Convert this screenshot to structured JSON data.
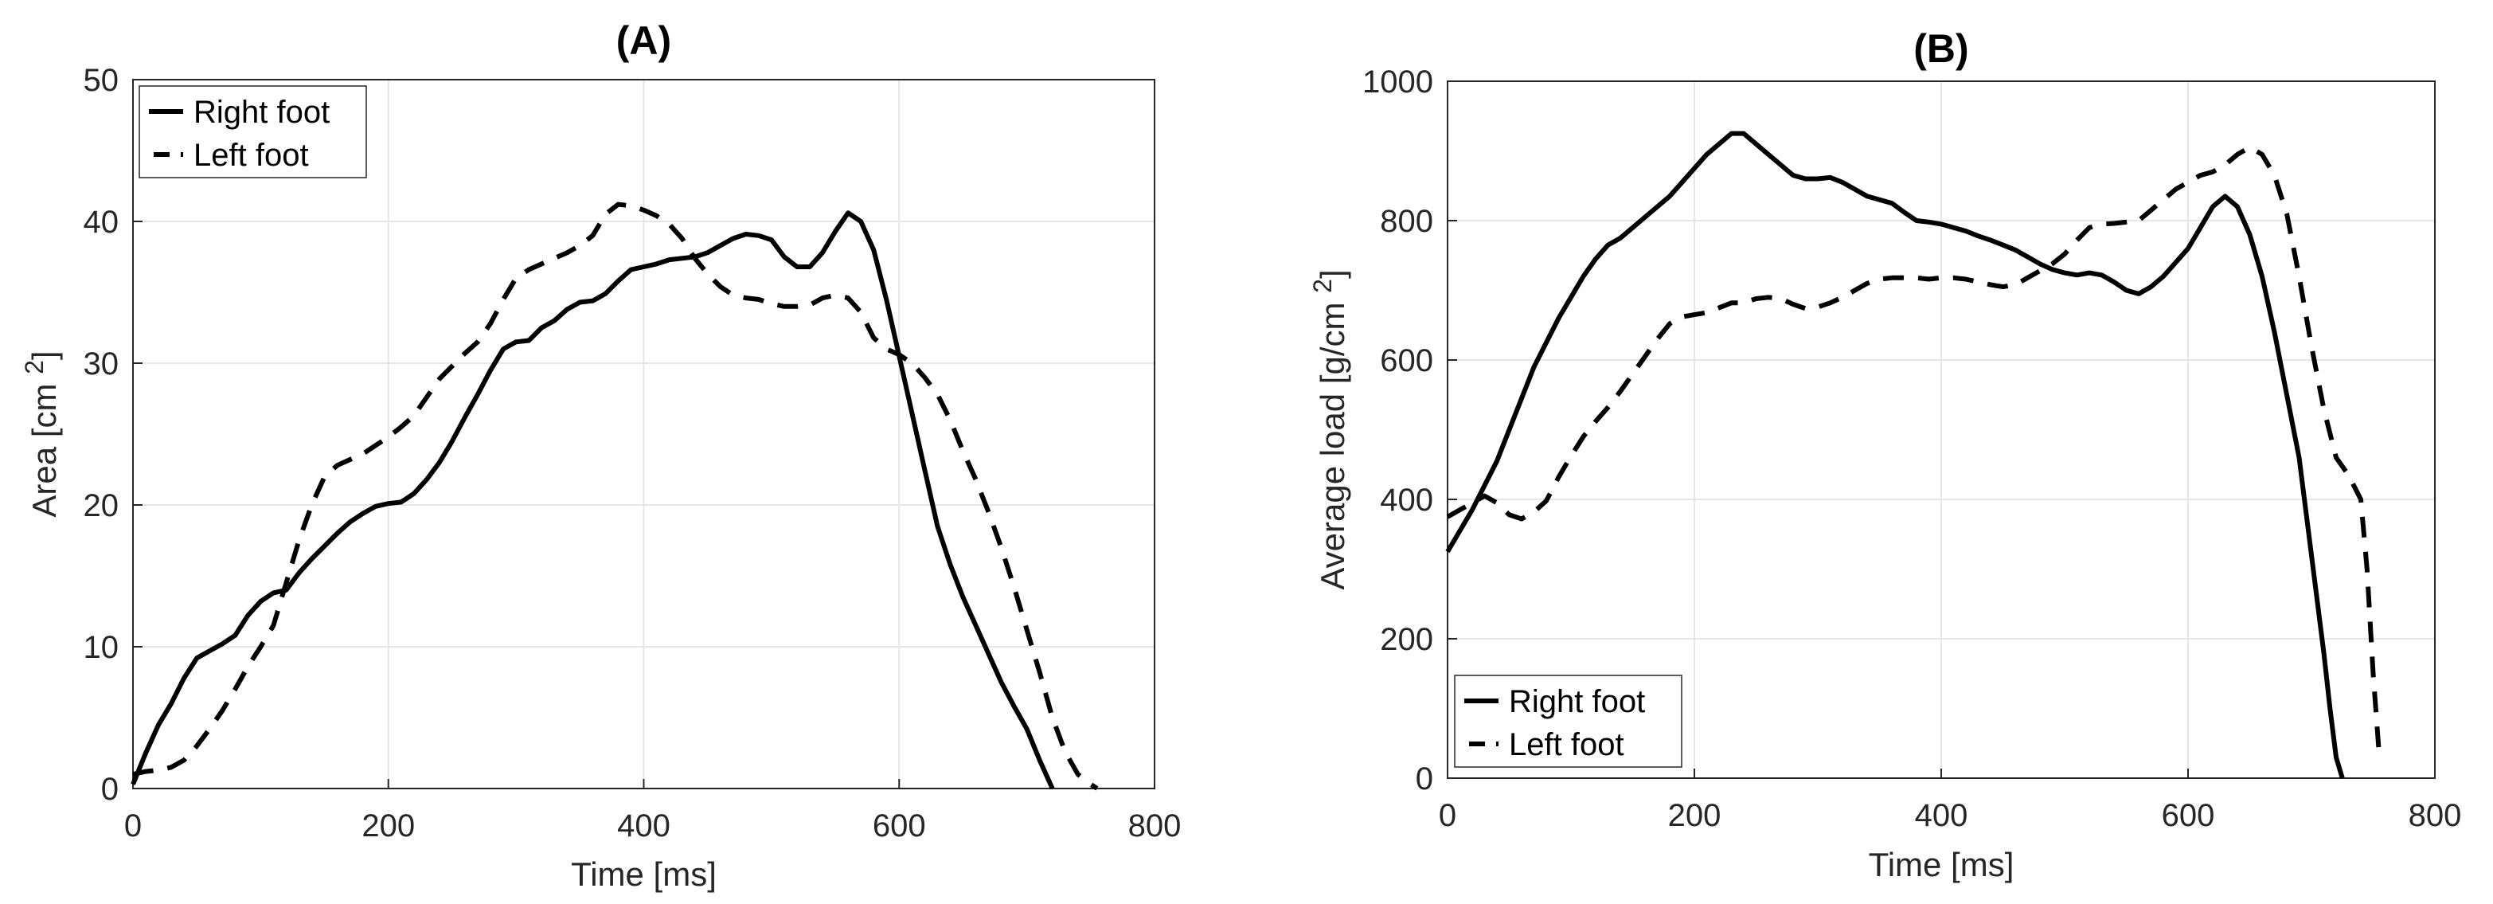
{
  "chart_data": [
    {
      "type": "line",
      "title": "(A)",
      "xlabel": "Time [ms]",
      "ylabel": "Area [cm",
      "ylabel_superscript": "2",
      "ylabel_suffix": "]",
      "xlim": [
        0,
        800
      ],
      "ylim": [
        0,
        50
      ],
      "xticks": [
        0,
        200,
        400,
        600,
        800
      ],
      "yticks": [
        0,
        10,
        20,
        30,
        40,
        50
      ],
      "xtick_labels": [
        "0",
        "200",
        "400",
        "600",
        "800"
      ],
      "ytick_labels": [
        "0",
        "10",
        "20",
        "30",
        "40",
        "50"
      ],
      "grid": true,
      "legend_position": "top-left",
      "series": [
        {
          "name": "Right foot",
          "style": "solid",
          "color": "#000000",
          "x": [
            0,
            10,
            20,
            30,
            40,
            50,
            60,
            70,
            80,
            90,
            100,
            110,
            120,
            130,
            140,
            150,
            160,
            170,
            180,
            190,
            200,
            210,
            220,
            230,
            240,
            250,
            260,
            270,
            280,
            290,
            300,
            310,
            320,
            330,
            340,
            350,
            360,
            370,
            380,
            390,
            400,
            410,
            420,
            430,
            440,
            450,
            460,
            470,
            480,
            490,
            500,
            510,
            520,
            530,
            540,
            550,
            560,
            570,
            580,
            590,
            600,
            610,
            620,
            630,
            640,
            650,
            660,
            670,
            680,
            690,
            700,
            710,
            720
          ],
          "y": [
            0.3,
            2.5,
            4.5,
            6.0,
            7.8,
            9.2,
            9.7,
            10.2,
            10.8,
            12.2,
            13.2,
            13.8,
            14.0,
            15.2,
            16.2,
            17.1,
            18.0,
            18.8,
            19.4,
            19.9,
            20.1,
            20.2,
            20.8,
            21.8,
            23.0,
            24.5,
            26.2,
            27.8,
            29.5,
            31.0,
            31.5,
            31.6,
            32.5,
            33.0,
            33.8,
            34.3,
            34.4,
            34.9,
            35.8,
            36.6,
            36.8,
            37.0,
            37.3,
            37.4,
            37.5,
            37.8,
            38.3,
            38.8,
            39.1,
            39.0,
            38.7,
            37.5,
            36.8,
            36.8,
            37.8,
            39.3,
            40.6,
            40.0,
            38.0,
            34.5,
            30.5,
            26.5,
            22.5,
            18.5,
            15.8,
            13.5,
            11.5,
            9.5,
            7.5,
            5.8,
            4.2,
            2.0,
            0.0
          ]
        },
        {
          "name": "Left foot",
          "style": "dashed",
          "color": "#000000",
          "x": [
            0,
            10,
            20,
            30,
            40,
            50,
            60,
            70,
            80,
            90,
            100,
            110,
            120,
            130,
            140,
            150,
            160,
            170,
            180,
            190,
            200,
            210,
            220,
            230,
            240,
            250,
            260,
            270,
            280,
            290,
            300,
            310,
            320,
            330,
            340,
            350,
            360,
            370,
            380,
            390,
            400,
            410,
            420,
            430,
            440,
            450,
            460,
            470,
            480,
            490,
            500,
            510,
            520,
            530,
            540,
            550,
            560,
            570,
            580,
            590,
            600,
            610,
            620,
            630,
            640,
            650,
            660,
            670,
            680,
            690,
            700,
            710,
            720,
            730,
            740,
            750,
            755
          ],
          "y": [
            1.0,
            1.2,
            1.3,
            1.5,
            2.0,
            3.0,
            4.2,
            5.5,
            7.0,
            8.6,
            10.0,
            11.5,
            14.5,
            17.5,
            20.0,
            22.0,
            22.8,
            23.2,
            23.6,
            24.2,
            24.8,
            25.5,
            26.3,
            27.6,
            28.9,
            29.8,
            30.7,
            31.5,
            32.8,
            34.5,
            36.0,
            36.6,
            37.0,
            37.4,
            37.8,
            38.3,
            39.0,
            40.5,
            41.2,
            41.1,
            40.8,
            40.4,
            39.8,
            38.8,
            37.4,
            36.3,
            35.4,
            34.8,
            34.6,
            34.5,
            34.2,
            34.0,
            34.0,
            34.1,
            34.6,
            34.8,
            34.6,
            33.6,
            31.8,
            31.0,
            30.6,
            30.0,
            29.0,
            27.8,
            26.0,
            23.8,
            21.8,
            19.5,
            17.0,
            14.2,
            11.2,
            8.2,
            5.0,
            2.6,
            1.0,
            0.3,
            0.0
          ]
        }
      ]
    },
    {
      "type": "line",
      "title": "(B)",
      "xlabel": "Time [ms]",
      "ylabel": "Average load [g/cm",
      "ylabel_superscript": "2",
      "ylabel_suffix": "]",
      "xlim": [
        0,
        800
      ],
      "ylim": [
        0,
        1000
      ],
      "xticks": [
        0,
        200,
        400,
        600,
        800
      ],
      "yticks": [
        0,
        200,
        400,
        600,
        800,
        1000
      ],
      "xtick_labels": [
        "0",
        "200",
        "400",
        "600",
        "800"
      ],
      "ytick_labels": [
        "0",
        "200",
        "400",
        "600",
        "800",
        "1000"
      ],
      "grid": true,
      "legend_position": "bottom-left",
      "series": [
        {
          "name": "Right foot",
          "style": "solid",
          "color": "#000000",
          "x": [
            0,
            10,
            20,
            30,
            40,
            50,
            60,
            70,
            80,
            90,
            100,
            110,
            120,
            130,
            140,
            150,
            160,
            170,
            180,
            190,
            200,
            210,
            220,
            230,
            240,
            250,
            260,
            270,
            280,
            290,
            300,
            310,
            320,
            330,
            340,
            350,
            360,
            370,
            380,
            390,
            400,
            410,
            420,
            430,
            440,
            450,
            460,
            470,
            480,
            490,
            500,
            510,
            520,
            530,
            540,
            550,
            560,
            570,
            580,
            590,
            600,
            610,
            620,
            630,
            640,
            650,
            660,
            670,
            680,
            690,
            700,
            710,
            715,
            720,
            725
          ],
          "y": [
            325,
            355,
            385,
            420,
            455,
            500,
            545,
            590,
            625,
            660,
            690,
            720,
            745,
            765,
            775,
            790,
            805,
            820,
            835,
            855,
            875,
            895,
            910,
            925,
            925,
            910,
            895,
            880,
            865,
            860,
            860,
            862,
            855,
            845,
            835,
            830,
            825,
            812,
            800,
            798,
            795,
            790,
            785,
            778,
            772,
            765,
            758,
            748,
            738,
            730,
            725,
            722,
            725,
            722,
            712,
            700,
            695,
            705,
            720,
            740,
            760,
            790,
            820,
            835,
            820,
            780,
            720,
            640,
            550,
            460,
            320,
            180,
            100,
            30,
            0
          ]
        },
        {
          "name": "Left foot",
          "style": "dashed",
          "color": "#000000",
          "x": [
            0,
            10,
            20,
            30,
            40,
            50,
            60,
            70,
            80,
            90,
            100,
            110,
            120,
            130,
            140,
            150,
            160,
            170,
            180,
            190,
            200,
            210,
            220,
            230,
            240,
            250,
            260,
            270,
            280,
            290,
            300,
            310,
            320,
            330,
            340,
            350,
            360,
            370,
            380,
            390,
            400,
            410,
            420,
            430,
            440,
            450,
            460,
            470,
            480,
            490,
            500,
            510,
            520,
            530,
            540,
            550,
            560,
            570,
            580,
            590,
            600,
            610,
            620,
            630,
            640,
            650,
            660,
            670,
            680,
            690,
            700,
            710,
            720,
            730,
            740,
            745,
            750,
            755
          ],
          "y": [
            375,
            385,
            395,
            405,
            395,
            378,
            372,
            382,
            398,
            432,
            462,
            490,
            512,
            532,
            555,
            580,
            605,
            630,
            652,
            662,
            665,
            668,
            675,
            682,
            682,
            688,
            690,
            688,
            680,
            674,
            676,
            682,
            690,
            700,
            710,
            716,
            718,
            718,
            718,
            716,
            718,
            718,
            716,
            712,
            708,
            705,
            708,
            718,
            728,
            738,
            752,
            772,
            790,
            795,
            796,
            798,
            800,
            815,
            830,
            845,
            855,
            865,
            870,
            880,
            895,
            905,
            895,
            865,
            810,
            720,
            620,
            530,
            460,
            435,
            400,
            300,
            150,
            30
          ]
        }
      ]
    }
  ]
}
